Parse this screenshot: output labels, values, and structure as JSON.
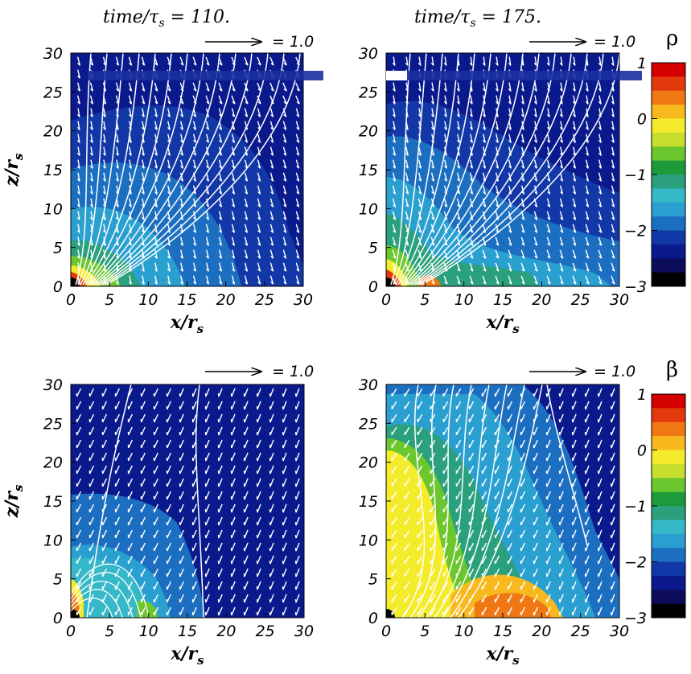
{
  "chart_data": {
    "type": "heatmap",
    "time_label_prefix": "time/",
    "time_label_tau": "τ",
    "time_label_sub": "s",
    "panels": [
      {
        "id": "rho-t110",
        "quantity": "ρ",
        "time_value": "110.",
        "xlabel_main": "x/r",
        "xlabel_sub": "s",
        "ylabel_main": "z/r",
        "ylabel_sub": "s",
        "xlim": [
          0,
          30
        ],
        "ylim": [
          0,
          30
        ],
        "xticks": [
          "0",
          "5",
          "10",
          "15",
          "20",
          "25",
          "30"
        ],
        "yticks": [
          "0",
          "5",
          "10",
          "15",
          "20",
          "25",
          "30"
        ],
        "ref_vector_label": "= 1.0"
      },
      {
        "id": "rho-t175",
        "quantity": "ρ",
        "time_value": "175.",
        "xlabel_main": "x/r",
        "xlabel_sub": "s",
        "ylabel_main": "z/r",
        "ylabel_sub": "s",
        "xlim": [
          0,
          30
        ],
        "ylim": [
          0,
          30
        ],
        "xticks": [
          "0",
          "5",
          "10",
          "15",
          "20",
          "25",
          "30"
        ],
        "yticks": [
          "0",
          "5",
          "10",
          "15",
          "20",
          "25",
          "30"
        ],
        "ref_vector_label": "= 1.0"
      },
      {
        "id": "beta-t110",
        "quantity": "β",
        "xlabel_main": "x/r",
        "xlabel_sub": "s",
        "ylabel_main": "z/r",
        "ylabel_sub": "s",
        "xlim": [
          0,
          30
        ],
        "ylim": [
          0,
          30
        ],
        "xticks": [
          "0",
          "5",
          "10",
          "15",
          "20",
          "25",
          "30"
        ],
        "yticks": [
          "0",
          "5",
          "10",
          "15",
          "20",
          "25",
          "30"
        ],
        "ref_vector_label": "= 1.0"
      },
      {
        "id": "beta-t175",
        "quantity": "β",
        "xlabel_main": "x/r",
        "xlabel_sub": "s",
        "ylabel_main": "z/r",
        "ylabel_sub": "s",
        "xlim": [
          0,
          30
        ],
        "ylim": [
          0,
          30
        ],
        "xticks": [
          "0",
          "5",
          "10",
          "15",
          "20",
          "25",
          "30"
        ],
        "yticks": [
          "0",
          "5",
          "10",
          "15",
          "20",
          "25",
          "30"
        ],
        "ref_vector_label": "= 1.0"
      }
    ],
    "colorbars": [
      {
        "symbol": "ρ",
        "range": [
          -3,
          1
        ],
        "ticks": [
          "1",
          "0",
          "−1",
          "−2",
          "−3"
        ],
        "tick_values": [
          1,
          0,
          -1,
          -2,
          -3
        ]
      },
      {
        "symbol": "β",
        "range": [
          -3,
          1
        ],
        "ticks": [
          "1",
          "0",
          "−1",
          "−2",
          "−3"
        ],
        "tick_values": [
          1,
          0,
          -1,
          -2,
          -3
        ]
      }
    ],
    "colormap": [
      "#000000",
      "#0c0c5a",
      "#0a1a8c",
      "#1238a8",
      "#1c6fc0",
      "#2aa0d0",
      "#35b8c8",
      "#2aa07c",
      "#1e9a3a",
      "#6cc62e",
      "#c8de2e",
      "#f4ec2a",
      "#f8b81e",
      "#f07814",
      "#e23a0c",
      "#d40000"
    ],
    "field": "log10 value, colour-filled contours with velocity vectors and field lines"
  }
}
